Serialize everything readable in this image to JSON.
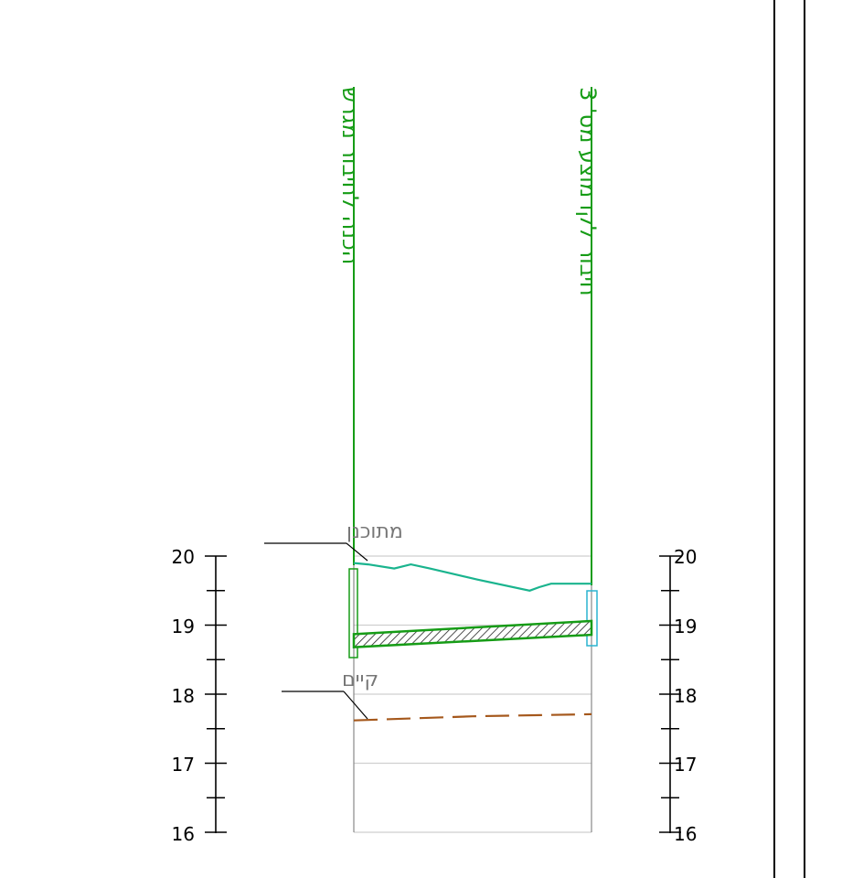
{
  "labels": {
    "left_vertical": "הכנה לחיבור מגרש",
    "right_vertical": "חיבור לקו מוצע מס' 3",
    "planned": "מתוכנן",
    "existing": "קיים"
  },
  "left_scale": [
    "20",
    "19",
    "18",
    "17",
    "16"
  ],
  "right_scale": [
    "20",
    "19",
    "18",
    "17",
    "16"
  ],
  "colors": {
    "green_text": "#169c16",
    "planned_line": "#1ab48e",
    "pipe_outline": "#169c16",
    "existing_line": "#a5581c",
    "grid": "#cfcfcf",
    "frame": "#000000",
    "manhole_right": "#2ab4d0"
  },
  "chart_data": {
    "type": "line",
    "title": "",
    "xlabel": "",
    "ylabel": "",
    "ylim": [
      16,
      20
    ],
    "series": [
      {
        "name": "מתוכנן",
        "style": "solid",
        "x": [
          0,
          0.06,
          0.17,
          0.24,
          0.32,
          0.52,
          0.74,
          0.78,
          0.83,
          1.0
        ],
        "y": [
          19.9,
          19.88,
          19.82,
          19.88,
          19.82,
          19.66,
          19.5,
          19.55,
          19.6,
          19.6
        ]
      },
      {
        "name": "קיים",
        "style": "dashed",
        "x": [
          0,
          0.5,
          1.0
        ],
        "y": [
          17.62,
          17.68,
          17.71
        ]
      },
      {
        "name": "pipe",
        "style": "hatched",
        "x": [
          0,
          1.0
        ],
        "y_top": [
          18.87,
          19.06
        ],
        "y_bottom": [
          18.68,
          18.86
        ]
      }
    ]
  }
}
